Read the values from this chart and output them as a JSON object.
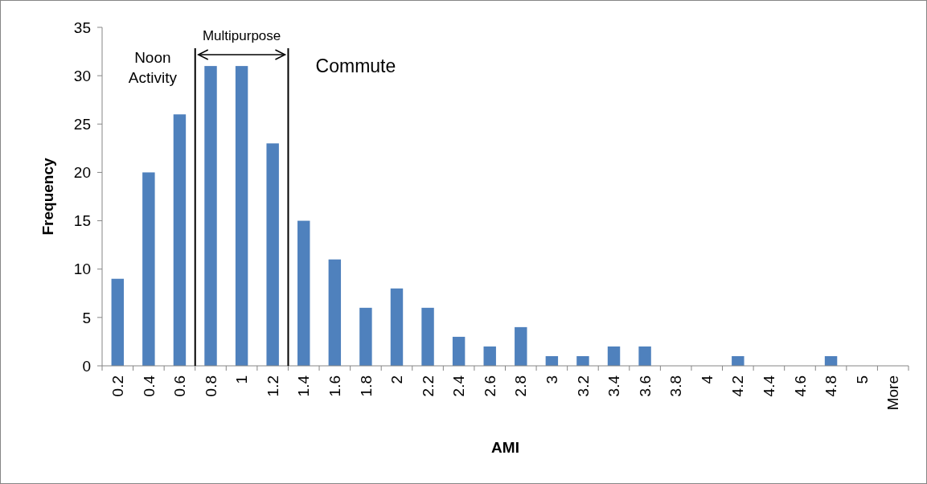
{
  "chart_data": {
    "type": "bar",
    "xlabel": "AMI",
    "ylabel": "Frequency",
    "categories": [
      "0.2",
      "0.4",
      "0.6",
      "0.8",
      "1",
      "1.2",
      "1.4",
      "1.6",
      "1.8",
      "2",
      "2.2",
      "2.4",
      "2.6",
      "2.8",
      "3",
      "3.2",
      "3.4",
      "3.6",
      "3.8",
      "4",
      "4.2",
      "4.4",
      "4.6",
      "4.8",
      "5",
      "More"
    ],
    "values": [
      9,
      20,
      26,
      31,
      31,
      23,
      15,
      11,
      6,
      8,
      6,
      3,
      2,
      4,
      1,
      1,
      2,
      2,
      0,
      0,
      1,
      0,
      0,
      1,
      0,
      0
    ],
    "color": "#4f81bd",
    "ylim": [
      0,
      35
    ],
    "yticks": [
      0,
      5,
      10,
      15,
      20,
      25,
      30,
      35
    ],
    "annotations": [
      "Noon\nActivity",
      "Multipurpose",
      "Commute"
    ]
  }
}
